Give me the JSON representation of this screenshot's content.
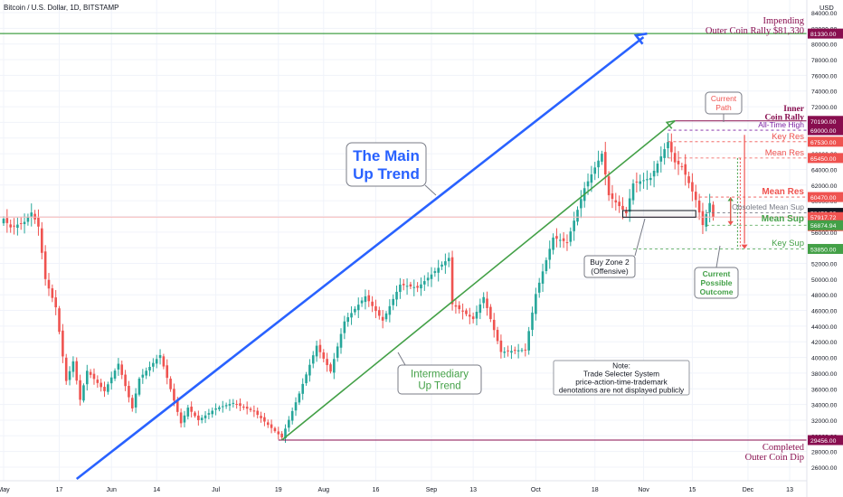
{
  "header": {
    "symbol_title": "Bitcoin / U.S. Dollar, 1D, BITSTAMP",
    "currency": "USD"
  },
  "annotations": {
    "main_trend": [
      "The Main",
      "Up Trend"
    ],
    "intermediary_trend": [
      "Intermediary",
      "Up Trend"
    ],
    "buy_zone": [
      "Buy Zone 2",
      "(Offensive)"
    ],
    "note": [
      "Note:",
      "Trade Selecter System",
      "price-action-time-trademark",
      "denotations are not displayed publicly"
    ],
    "current_path": [
      "Current",
      "Path"
    ],
    "possible_outcome": [
      "Current",
      "Possible",
      "Outcome"
    ],
    "impending": [
      "Impending",
      "Outer Coin Rally $81,330"
    ],
    "inner_coin": [
      "Inner",
      "Coin Rally"
    ],
    "completed": [
      "Completed",
      "Outer Coin Dip"
    ],
    "all_time_high": "All-Time High",
    "key_res": "Key Res",
    "mean_res_upper": "Mean Res",
    "mean_res_lower": "Mean Res",
    "obsoleted": "Obsoleted Mean Sup",
    "mean_sup": "Mean Sup",
    "key_sup": "Key Sup"
  },
  "colors": {
    "up": "#26a69a",
    "down": "#ef5350",
    "main_trend": "#2962ff",
    "intermediary": "#43a047",
    "maroon": "#880e4f",
    "current_price": "#131722"
  },
  "chart_data": {
    "type": "candlestick",
    "symbol": "Bitcoin / U.S. Dollar",
    "interval": "1D",
    "exchange": "BITSTAMP",
    "y_unit": "USD",
    "ylim": [
      24500,
      84600
    ],
    "y_ticks": [
      26000,
      28000,
      30000,
      32000,
      34000,
      36000,
      38000,
      40000,
      42000,
      44000,
      46000,
      48000,
      50000,
      52000,
      54000,
      56000,
      58000,
      60000,
      62000,
      64000,
      66000,
      68000,
      70000,
      72000,
      74000,
      76000,
      78000,
      80000,
      82000,
      84000
    ],
    "y_tick_labels": [
      "26000.00",
      "28000.00",
      "30000.00",
      "32000.00",
      "34000.00",
      "36000.00",
      "38000.00",
      "40000.00",
      "42000.00",
      "44000.00",
      "46000.00",
      "48000.00",
      "50000.00",
      "52000.00",
      "54000.00",
      "56000.00",
      "58000.00",
      "60000.00",
      "62000.00",
      "64000.00",
      "66000.00",
      "68000.00",
      "70000.00",
      "72000.00",
      "74000.00",
      "76000.00",
      "78000.00",
      "80000.00",
      "82000.00",
      "84000.00"
    ],
    "x_range": [
      "2021-05-01",
      "2021-12-20"
    ],
    "x_ticks": [
      {
        "date": "2021-05-01",
        "label": "May"
      },
      {
        "date": "2021-05-17",
        "label": "17"
      },
      {
        "date": "2021-06-01",
        "label": "Jun"
      },
      {
        "date": "2021-06-14",
        "label": "14"
      },
      {
        "date": "2021-07-01",
        "label": "Jul"
      },
      {
        "date": "2021-07-19",
        "label": "19"
      },
      {
        "date": "2021-08-01",
        "label": "Aug"
      },
      {
        "date": "2021-08-16",
        "label": "16"
      },
      {
        "date": "2021-09-01",
        "label": "Sep"
      },
      {
        "date": "2021-09-13",
        "label": "13"
      },
      {
        "date": "2021-10-01",
        "label": "Oct"
      },
      {
        "date": "2021-10-18",
        "label": "18"
      },
      {
        "date": "2021-11-01",
        "label": "Nov"
      },
      {
        "date": "2021-11-15",
        "label": "15"
      },
      {
        "date": "2021-12-01",
        "label": "Dec"
      },
      {
        "date": "2021-12-13",
        "label": "13"
      }
    ],
    "candles": {
      "start_date": "2021-05-01",
      "end_date": "2021-11-21",
      "close_anchors": [
        {
          "date": "2021-05-01",
          "close": 57700
        },
        {
          "date": "2021-05-03",
          "close": 56600
        },
        {
          "date": "2021-05-07",
          "close": 57300
        },
        {
          "date": "2021-05-09",
          "close": 58500
        },
        {
          "date": "2021-05-11",
          "close": 56700
        },
        {
          "date": "2021-05-13",
          "close": 50000
        },
        {
          "date": "2021-05-16",
          "close": 46400
        },
        {
          "date": "2021-05-19",
          "close": 37000
        },
        {
          "date": "2021-05-21",
          "close": 39500
        },
        {
          "date": "2021-05-23",
          "close": 34600
        },
        {
          "date": "2021-05-25",
          "close": 38300
        },
        {
          "date": "2021-05-30",
          "close": 35700
        },
        {
          "date": "2021-06-03",
          "close": 39200
        },
        {
          "date": "2021-06-07",
          "close": 33500
        },
        {
          "date": "2021-06-09",
          "close": 37300
        },
        {
          "date": "2021-06-15",
          "close": 40300
        },
        {
          "date": "2021-06-21",
          "close": 31600
        },
        {
          "date": "2021-06-23",
          "close": 33600
        },
        {
          "date": "2021-06-26",
          "close": 32000
        },
        {
          "date": "2021-07-01",
          "close": 33500
        },
        {
          "date": "2021-07-06",
          "close": 34200
        },
        {
          "date": "2021-07-12",
          "close": 33100
        },
        {
          "date": "2021-07-16",
          "close": 31400
        },
        {
          "date": "2021-07-20",
          "close": 29800
        },
        {
          "date": "2021-07-25",
          "close": 35400
        },
        {
          "date": "2021-07-30",
          "close": 41500
        },
        {
          "date": "2021-08-03",
          "close": 38200
        },
        {
          "date": "2021-08-07",
          "close": 44600
        },
        {
          "date": "2021-08-13",
          "close": 47800
        },
        {
          "date": "2021-08-18",
          "close": 44700
        },
        {
          "date": "2021-08-23",
          "close": 49300
        },
        {
          "date": "2021-08-28",
          "close": 48900
        },
        {
          "date": "2021-09-06",
          "close": 52700
        },
        {
          "date": "2021-09-07",
          "close": 46800
        },
        {
          "date": "2021-09-13",
          "close": 44900
        },
        {
          "date": "2021-09-16",
          "close": 47700
        },
        {
          "date": "2021-09-21",
          "close": 40700
        },
        {
          "date": "2021-09-28",
          "close": 41000
        },
        {
          "date": "2021-10-01",
          "close": 48100
        },
        {
          "date": "2021-10-06",
          "close": 55300
        },
        {
          "date": "2021-10-10",
          "close": 54700
        },
        {
          "date": "2021-10-15",
          "close": 61600
        },
        {
          "date": "2021-10-20",
          "close": 66000
        },
        {
          "date": "2021-10-22",
          "close": 60700
        },
        {
          "date": "2021-10-27",
          "close": 58400
        },
        {
          "date": "2021-10-29",
          "close": 62200
        },
        {
          "date": "2021-11-03",
          "close": 62900
        },
        {
          "date": "2021-11-08",
          "close": 67500
        },
        {
          "date": "2021-11-10",
          "close": 64900
        },
        {
          "date": "2021-11-12",
          "close": 64400
        },
        {
          "date": "2021-11-16",
          "close": 60100
        },
        {
          "date": "2021-11-18",
          "close": 56900
        },
        {
          "date": "2021-11-20",
          "close": 59700
        },
        {
          "date": "2021-11-21",
          "close": 57917.72
        }
      ]
    },
    "horizontal_levels": [
      {
        "value": 81330,
        "label": "81330.00",
        "name": "Impending Outer Coin Rally"
      },
      {
        "value": 70190,
        "label": "70190.00",
        "name": "Inner Coin Rally"
      },
      {
        "value": 69000,
        "label": "69000.00",
        "name": "All-Time High"
      },
      {
        "value": 67530,
        "label": "67530.00",
        "name": "Key Res"
      },
      {
        "value": 65450,
        "label": "65450.00",
        "name": "Mean Res"
      },
      {
        "value": 60470,
        "label": "60470.00",
        "name": "Mean Res"
      },
      {
        "value": 58450,
        "label": "58450.00",
        "name": "Obsoleted Mean Sup"
      },
      {
        "value": 57917.72,
        "label": "57917.72",
        "name": "Current price"
      },
      {
        "value": 56874.94,
        "label": "56874.94",
        "name": "Mean Sup"
      },
      {
        "value": 53850,
        "label": "53850.00",
        "name": "Key Sup"
      },
      {
        "value": 29456,
        "label": "29456.00",
        "name": "Completed Outer Coin Dip"
      }
    ],
    "countdown": "08:51:54",
    "trend_lines": [
      {
        "name": "The Main Up Trend",
        "from": {
          "date": "2021-05-22",
          "value": 24500
        },
        "to": {
          "date": "2021-11-02",
          "value": 81330
        }
      },
      {
        "name": "Intermediary Up Trend",
        "from": {
          "date": "2021-07-20",
          "value": 29456
        },
        "to": {
          "date": "2021-11-10",
          "value": 70190
        }
      }
    ],
    "buy_zone": {
      "date_from": "2021-10-26",
      "date_to": "2021-11-16",
      "value_low": 57900,
      "value_high": 58750
    },
    "current_path_arrow": {
      "date": "2021-11-30",
      "from": 68400,
      "to": 53850
    },
    "possible_outcome_arrows": [
      {
        "date": "2021-11-26",
        "from": 56874.94,
        "to": 60470
      },
      {
        "date": "2021-11-26",
        "from": 60470,
        "to": 56874.94
      },
      {
        "date": "2021-11-28",
        "from": 65450,
        "to": 53850
      }
    ]
  }
}
